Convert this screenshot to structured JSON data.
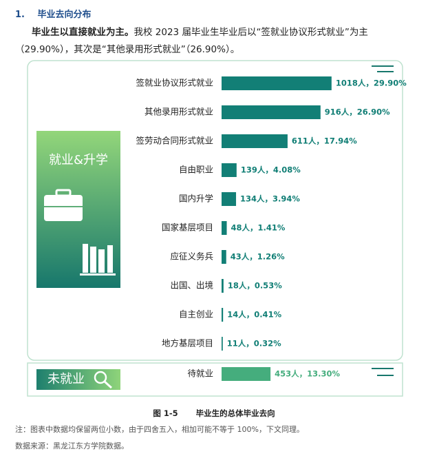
{
  "section": {
    "number": "1.",
    "title": "毕业去向分布"
  },
  "paragraph": {
    "bold": "毕业生以直接就业为主。",
    "line1": "我校 2023 届毕业生毕业后以“签就业协议形式就业”为主",
    "line2": "（29.90%），其次是“其他录用形式就业”（26.90%）。"
  },
  "chart_data": [
    {
      "type": "bar",
      "orientation": "horizontal",
      "panel_label": "就业&升学",
      "color": "#127f76",
      "categories": [
        "签就业协议形式就业",
        "其他录用形式就业",
        "签劳动合同形式就业",
        "自由职业",
        "国内升学",
        "国家基层项目",
        "应征义务兵",
        "出国、出境",
        "自主创业",
        "地方基层项目"
      ],
      "values": [
        1018,
        916,
        611,
        139,
        134,
        48,
        43,
        18,
        14,
        11
      ],
      "value_labels": [
        "1018人，29.90%",
        "916人，26.90%",
        "611人，17.94%",
        "139人，4.08%",
        "134人，3.94%",
        "48人，1.41%",
        "43人，1.26%",
        "18人，0.53%",
        "14人，0.41%",
        "11人，0.32%"
      ]
    },
    {
      "type": "bar",
      "orientation": "horizontal",
      "panel_label": "未就业",
      "color": "#45ad7d",
      "categories": [
        "待就业"
      ],
      "values": [
        453
      ],
      "value_labels": [
        "453人，13.30%"
      ]
    }
  ],
  "caption": {
    "label": "图 1-5",
    "title": "毕业生的总体毕业去向"
  },
  "notes": [
    "注：图表中数据均保留两位小数，由于四舍五入，相加可能不等于 100%，下文同理。",
    "数据来源：黑龙江东方学院数据。"
  ]
}
